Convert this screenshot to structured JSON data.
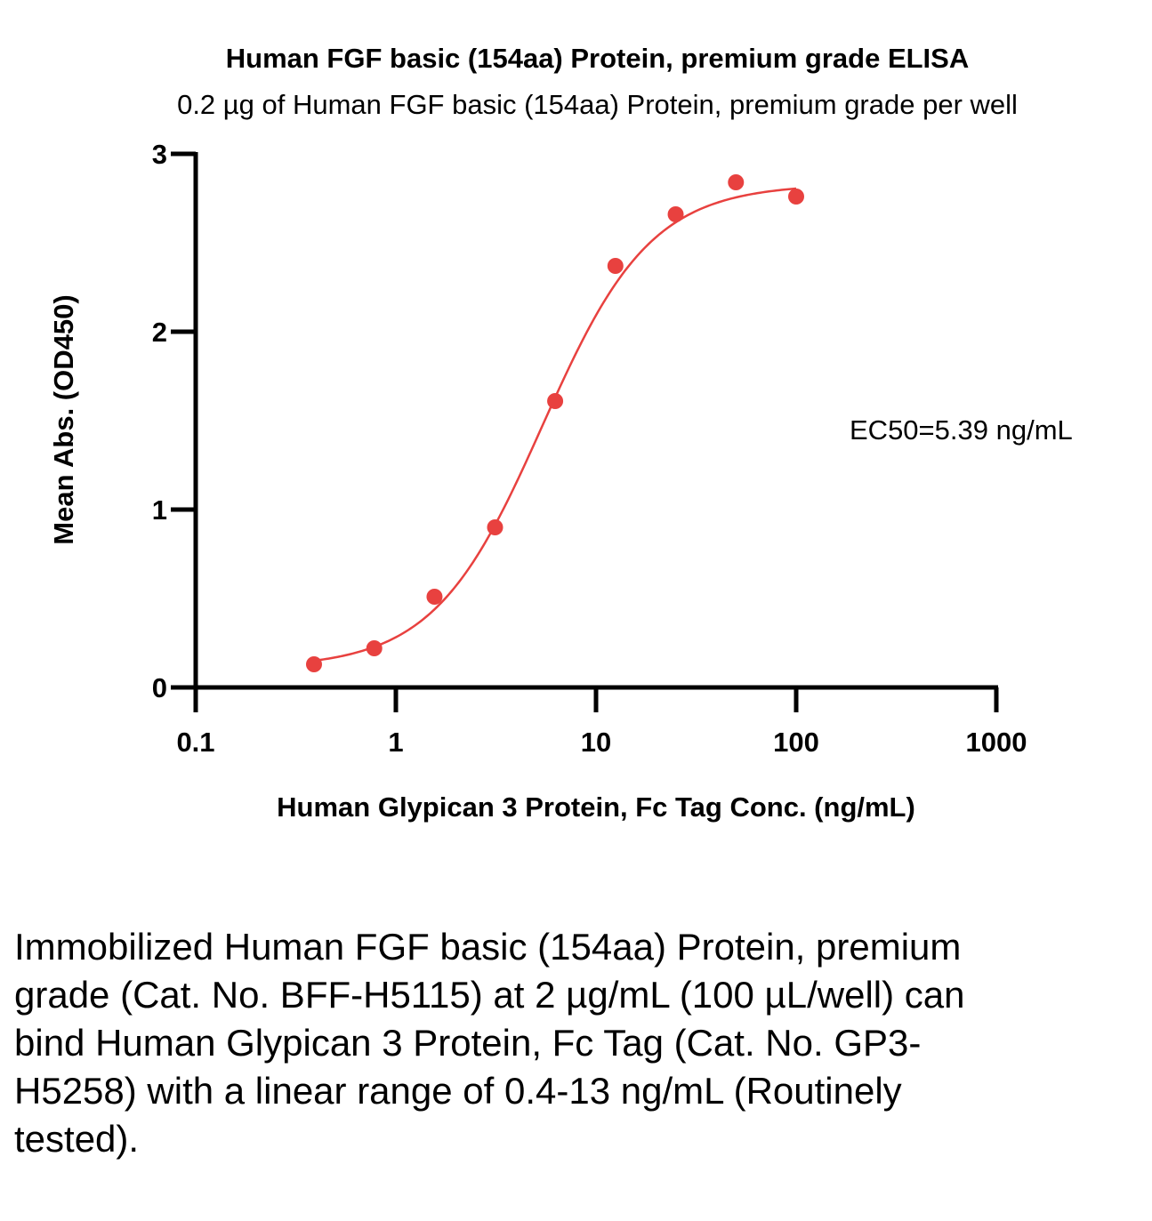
{
  "chart_data": {
    "type": "scatter",
    "title": "Human FGF basic (154aa) Protein, premium grade ELISA",
    "subtitle": "0.2 µg of Human FGF basic (154aa) Protein, premium grade per well",
    "xlabel": "Human Glypican 3 Protein, Fc Tag Conc. (ng/mL)",
    "ylabel": "Mean Abs. (OD450)",
    "x_scale": "log",
    "xlim": [
      0.1,
      1000
    ],
    "ylim": [
      0,
      3
    ],
    "x_ticks": [
      "0.1",
      "1",
      "10",
      "100",
      "1000"
    ],
    "y_ticks": [
      "0",
      "1",
      "2",
      "3"
    ],
    "grid": false,
    "color": "#e8413f",
    "series": [
      {
        "x": [
          0.39,
          0.78,
          1.56,
          3.13,
          6.25,
          12.5,
          25,
          50,
          100
        ],
        "y": [
          0.13,
          0.22,
          0.51,
          0.9,
          1.61,
          2.37,
          2.66,
          2.84,
          2.76
        ]
      }
    ],
    "fit": {
      "type": "4PL",
      "bottom": 0.11,
      "top": 2.83,
      "ec50": 5.39,
      "hill": 1.6,
      "x_range": [
        0.39,
        100
      ]
    },
    "annotation": "EC50=5.39 ng/mL"
  },
  "caption": "Immobilized Human FGF basic (154aa) Protein, premium grade (Cat. No. BFF-H5115) at 2 µg/mL (100 µL/well) can bind Human Glypican 3 Protein, Fc Tag (Cat. No. GP3-H5258) with a linear range of 0.4-13 ng/mL (Routinely tested)."
}
